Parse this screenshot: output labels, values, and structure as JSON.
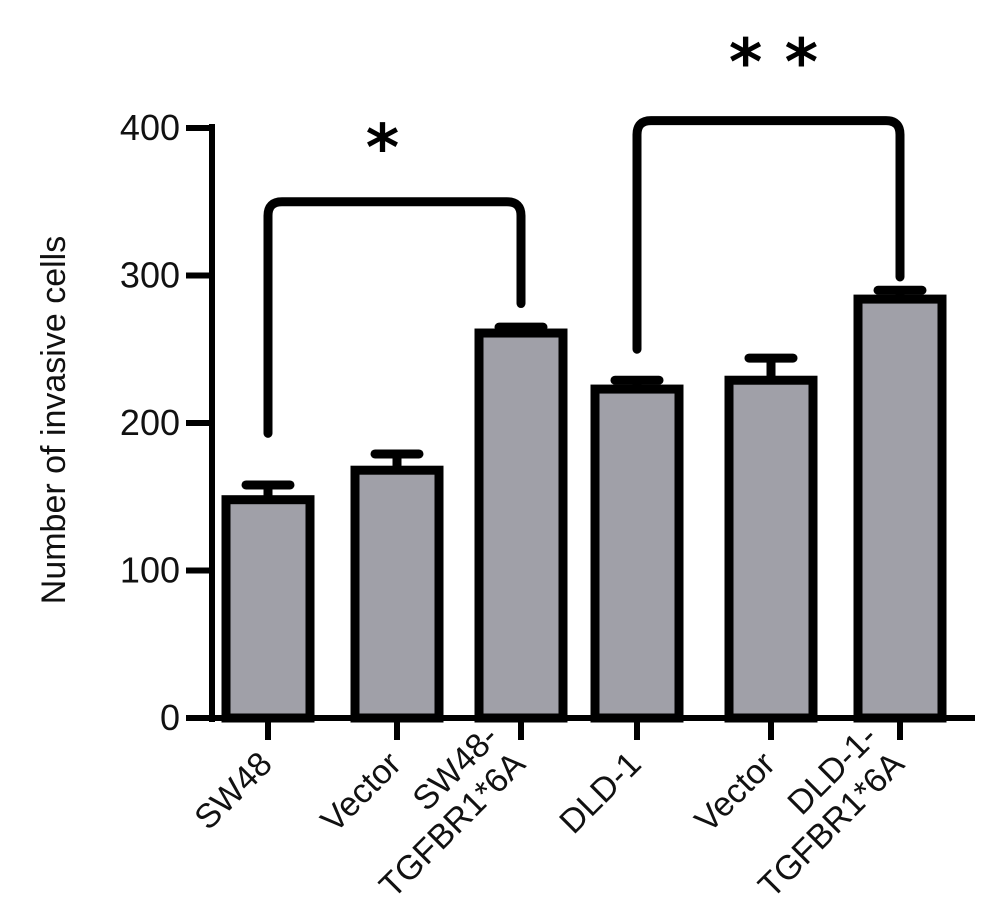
{
  "chart_data": {
    "type": "bar",
    "categories": [
      [
        "SW48"
      ],
      [
        "Vector"
      ],
      [
        "SW48-",
        "TGFBR1*6A"
      ],
      [
        "DLD-1"
      ],
      [
        "Vector"
      ],
      [
        "DLD-1-",
        "TGFBR1*6A"
      ]
    ],
    "values": [
      148,
      168,
      261,
      223,
      229,
      284
    ],
    "errors": [
      10,
      11,
      4,
      6,
      15,
      6
    ],
    "title": "",
    "xlabel": "",
    "ylabel": "Number of invasive cells",
    "ylim": [
      0,
      400
    ],
    "yticks": [
      0,
      100,
      200,
      300,
      400
    ],
    "significance": [
      {
        "from": 0,
        "to": 2,
        "level": 350,
        "label": "*"
      },
      {
        "from": 3,
        "to": 5,
        "level": 405,
        "label": "* *"
      }
    ],
    "colors": {
      "bar_fill": "#a0a0a8",
      "bar_edge": "#000000",
      "axis": "#000000"
    },
    "grid": false,
    "legend": "none"
  }
}
